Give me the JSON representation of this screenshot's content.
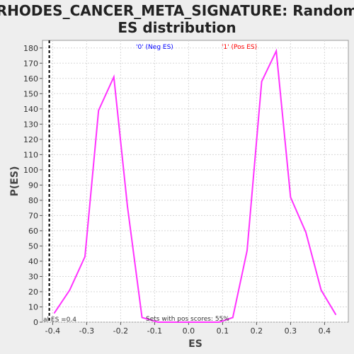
{
  "chart_data": {
    "type": "line",
    "title_line1": "RHODES_CANCER_META_SIGNATURE: Random",
    "title_line2": "ES distribution",
    "xlabel": "ES",
    "ylabel": "P(ES)",
    "xlim": [
      -0.43,
      0.47
    ],
    "ylim": [
      0,
      185
    ],
    "x_ticks": [
      -0.4,
      -0.3,
      -0.2,
      -0.1,
      0.0,
      0.1,
      0.2,
      0.3,
      0.4
    ],
    "x_tick_labels": [
      "-0.4",
      "-0.3",
      "-0.2",
      "-0.1",
      "0.0",
      "0.1",
      "0.2",
      "0.3",
      "0.4"
    ],
    "y_ticks": [
      0,
      10,
      20,
      30,
      40,
      50,
      60,
      70,
      80,
      90,
      100,
      110,
      120,
      130,
      140,
      150,
      160,
      170,
      180
    ],
    "y_tick_labels": [
      "0",
      "10",
      "20",
      "30",
      "40",
      "50",
      "60",
      "70",
      "80",
      "90",
      "100",
      "110",
      "120",
      "130",
      "140",
      "150",
      "160",
      "170",
      "180"
    ],
    "grid": true,
    "series": [
      {
        "color": "#ff33ff",
        "points": [
          [
            -0.395,
            6
          ],
          [
            -0.35,
            21
          ],
          [
            -0.305,
            43
          ],
          [
            -0.265,
            139
          ],
          [
            -0.22,
            161
          ],
          [
            -0.18,
            76
          ],
          [
            -0.137,
            3
          ],
          [
            -0.09,
            0
          ],
          [
            0.0,
            0
          ],
          [
            0.09,
            0
          ],
          [
            0.13,
            3
          ],
          [
            0.172,
            47
          ],
          [
            0.215,
            158
          ],
          [
            0.258,
            178
          ],
          [
            0.3,
            82
          ],
          [
            0.345,
            59
          ],
          [
            0.39,
            21
          ],
          [
            0.433,
            5
          ]
        ]
      }
    ],
    "marker_line": {
      "x": -0.41,
      "color": "#000000",
      "style": "dashed"
    },
    "annotations": {
      "neg_label": "'0' (Neg ES)",
      "neg_color": "#0000ff",
      "pos_label": "'1' (Pos ES)",
      "pos_color": "#ff0000",
      "actual_es": "al ES =0.4",
      "pos_scores": "Sets with pos scores: 55%"
    },
    "colors": {
      "background": "#eeeeee",
      "plot_background": "#ffffff",
      "gridline": "#d8d8d8"
    }
  }
}
